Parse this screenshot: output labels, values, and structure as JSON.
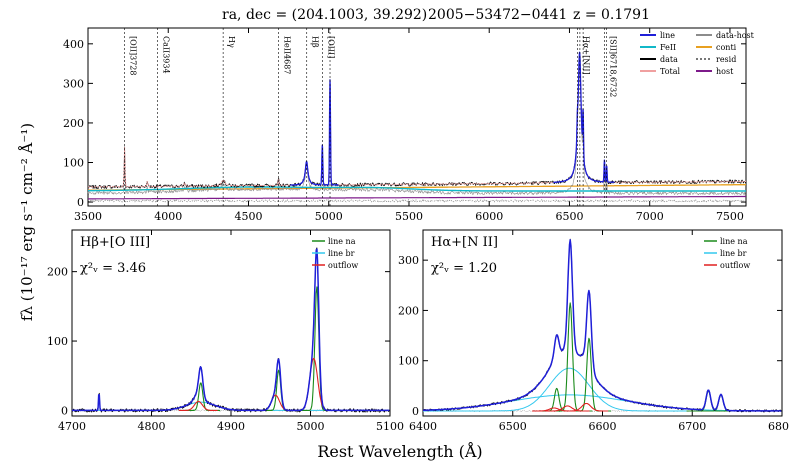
{
  "header": {
    "radec": "ra, dec = (204.1003, 39.292)",
    "plate": "2005−53472−0441",
    "redshift": "z = 0.1791"
  },
  "ylabel": "fλ (10⁻¹⁷ erg s⁻¹ cm⁻² Å⁻¹)",
  "xlabel": "Rest Wavelength (Å)",
  "colors": {
    "line": "#1f1fd8",
    "feii": "#11b8c8",
    "data": "#000000",
    "total": "#f0a0a0",
    "data_host": "#8c8c8c",
    "conti": "#e8a020",
    "resid": "#777777",
    "host": "#7d1a8a",
    "narrow": "#1a8a1a",
    "broad": "#33c8ee",
    "outflow": "#e02020"
  },
  "chart_data": [
    {
      "type": "line",
      "title": "full spectrum",
      "xlim": [
        3500,
        7600
      ],
      "ylim": [
        -10,
        440
      ],
      "xticks": [
        3500,
        4000,
        4500,
        5000,
        5500,
        6000,
        6500,
        7000,
        7500
      ],
      "yticks": [
        0,
        100,
        200,
        300,
        400
      ],
      "legend": [
        "line",
        "FeII",
        "data",
        "Total",
        "data-host",
        "conti",
        "resid",
        "host"
      ],
      "line_marks": [
        {
          "label": "[OII]3728",
          "x": 3728
        },
        {
          "label": "CaII3934",
          "x": 3934
        },
        {
          "label": "Hγ",
          "x": 4342
        },
        {
          "label": "HeII4687",
          "x": 4687
        },
        {
          "label": "Hβ",
          "x": 4863
        },
        {
          "label": "[OIII]",
          "x": 4960
        },
        {
          "label": "[OIII]",
          "x": 5008
        },
        {
          "label": "Hα+[NII]",
          "x": 6550
        },
        {
          "label": "Hα+[NII]",
          "x": 6565
        },
        {
          "label": "Hα+[NII]",
          "x": 6585
        },
        {
          "label": "[SII]6718,6732",
          "x": 6718
        },
        {
          "label": "[SII]6718,6732",
          "x": 6732
        }
      ],
      "series": {
        "conti": {
          "x": [
            3500,
            7600
          ],
          "y": [
            30,
            44
          ]
        },
        "feii_level": 35,
        "host": {
          "x": [
            3500,
            7600
          ],
          "y": [
            8,
            14
          ]
        }
      }
    },
    {
      "type": "line",
      "title": "Hβ+[O III]",
      "chi2": "χ²ᵥ = 3.46",
      "xlim": [
        4700,
        5100
      ],
      "ylim": [
        -8,
        260
      ],
      "xticks": [
        4700,
        4800,
        4900,
        5000,
        5100
      ],
      "yticks": [
        0,
        100,
        200
      ],
      "legend": [
        "line na",
        "line br",
        "outflow"
      ],
      "components": {
        "narrow": [
          {
            "mu": 4862,
            "a": 40,
            "s": 2.5
          },
          {
            "mu": 4960,
            "a": 58,
            "s": 2.5
          },
          {
            "mu": 5008,
            "a": 178,
            "s": 2.5
          }
        ],
        "broad": [
          {
            "mu": 4862,
            "a": 12,
            "s": 18
          }
        ],
        "outflow": [
          {
            "mu": 4859,
            "a": 13,
            "s": 5
          },
          {
            "mu": 4956,
            "a": 22,
            "s": 5
          },
          {
            "mu": 5004,
            "a": 75,
            "s": 5
          }
        ]
      }
    },
    {
      "type": "line",
      "title": "Hα+[N II]",
      "chi2": "χ²ᵥ = 1.20",
      "xlim": [
        6400,
        6800
      ],
      "ylim": [
        -10,
        360
      ],
      "xticks": [
        6400,
        6500,
        6600,
        6700,
        6800
      ],
      "yticks": [
        0,
        100,
        200,
        300
      ],
      "legend": [
        "line na",
        "line br",
        "outflow"
      ],
      "components": {
        "narrow": [
          {
            "mu": 6549,
            "a": 45,
            "s": 2.5
          },
          {
            "mu": 6564,
            "a": 215,
            "s": 2.5
          },
          {
            "mu": 6585,
            "a": 145,
            "s": 2.5
          },
          {
            "mu": 6718,
            "a": 40,
            "s": 2.5
          },
          {
            "mu": 6732,
            "a": 32,
            "s": 2.5
          }
        ],
        "broad": [
          {
            "mu": 6563,
            "a": 85,
            "s": 22
          },
          {
            "mu": 6563,
            "a": 32,
            "s": 65
          }
        ],
        "outflow": [
          {
            "mu": 6546,
            "a": 6,
            "s": 5
          },
          {
            "mu": 6561,
            "a": 10,
            "s": 5
          },
          {
            "mu": 6582,
            "a": 15,
            "s": 5
          }
        ]
      }
    }
  ]
}
